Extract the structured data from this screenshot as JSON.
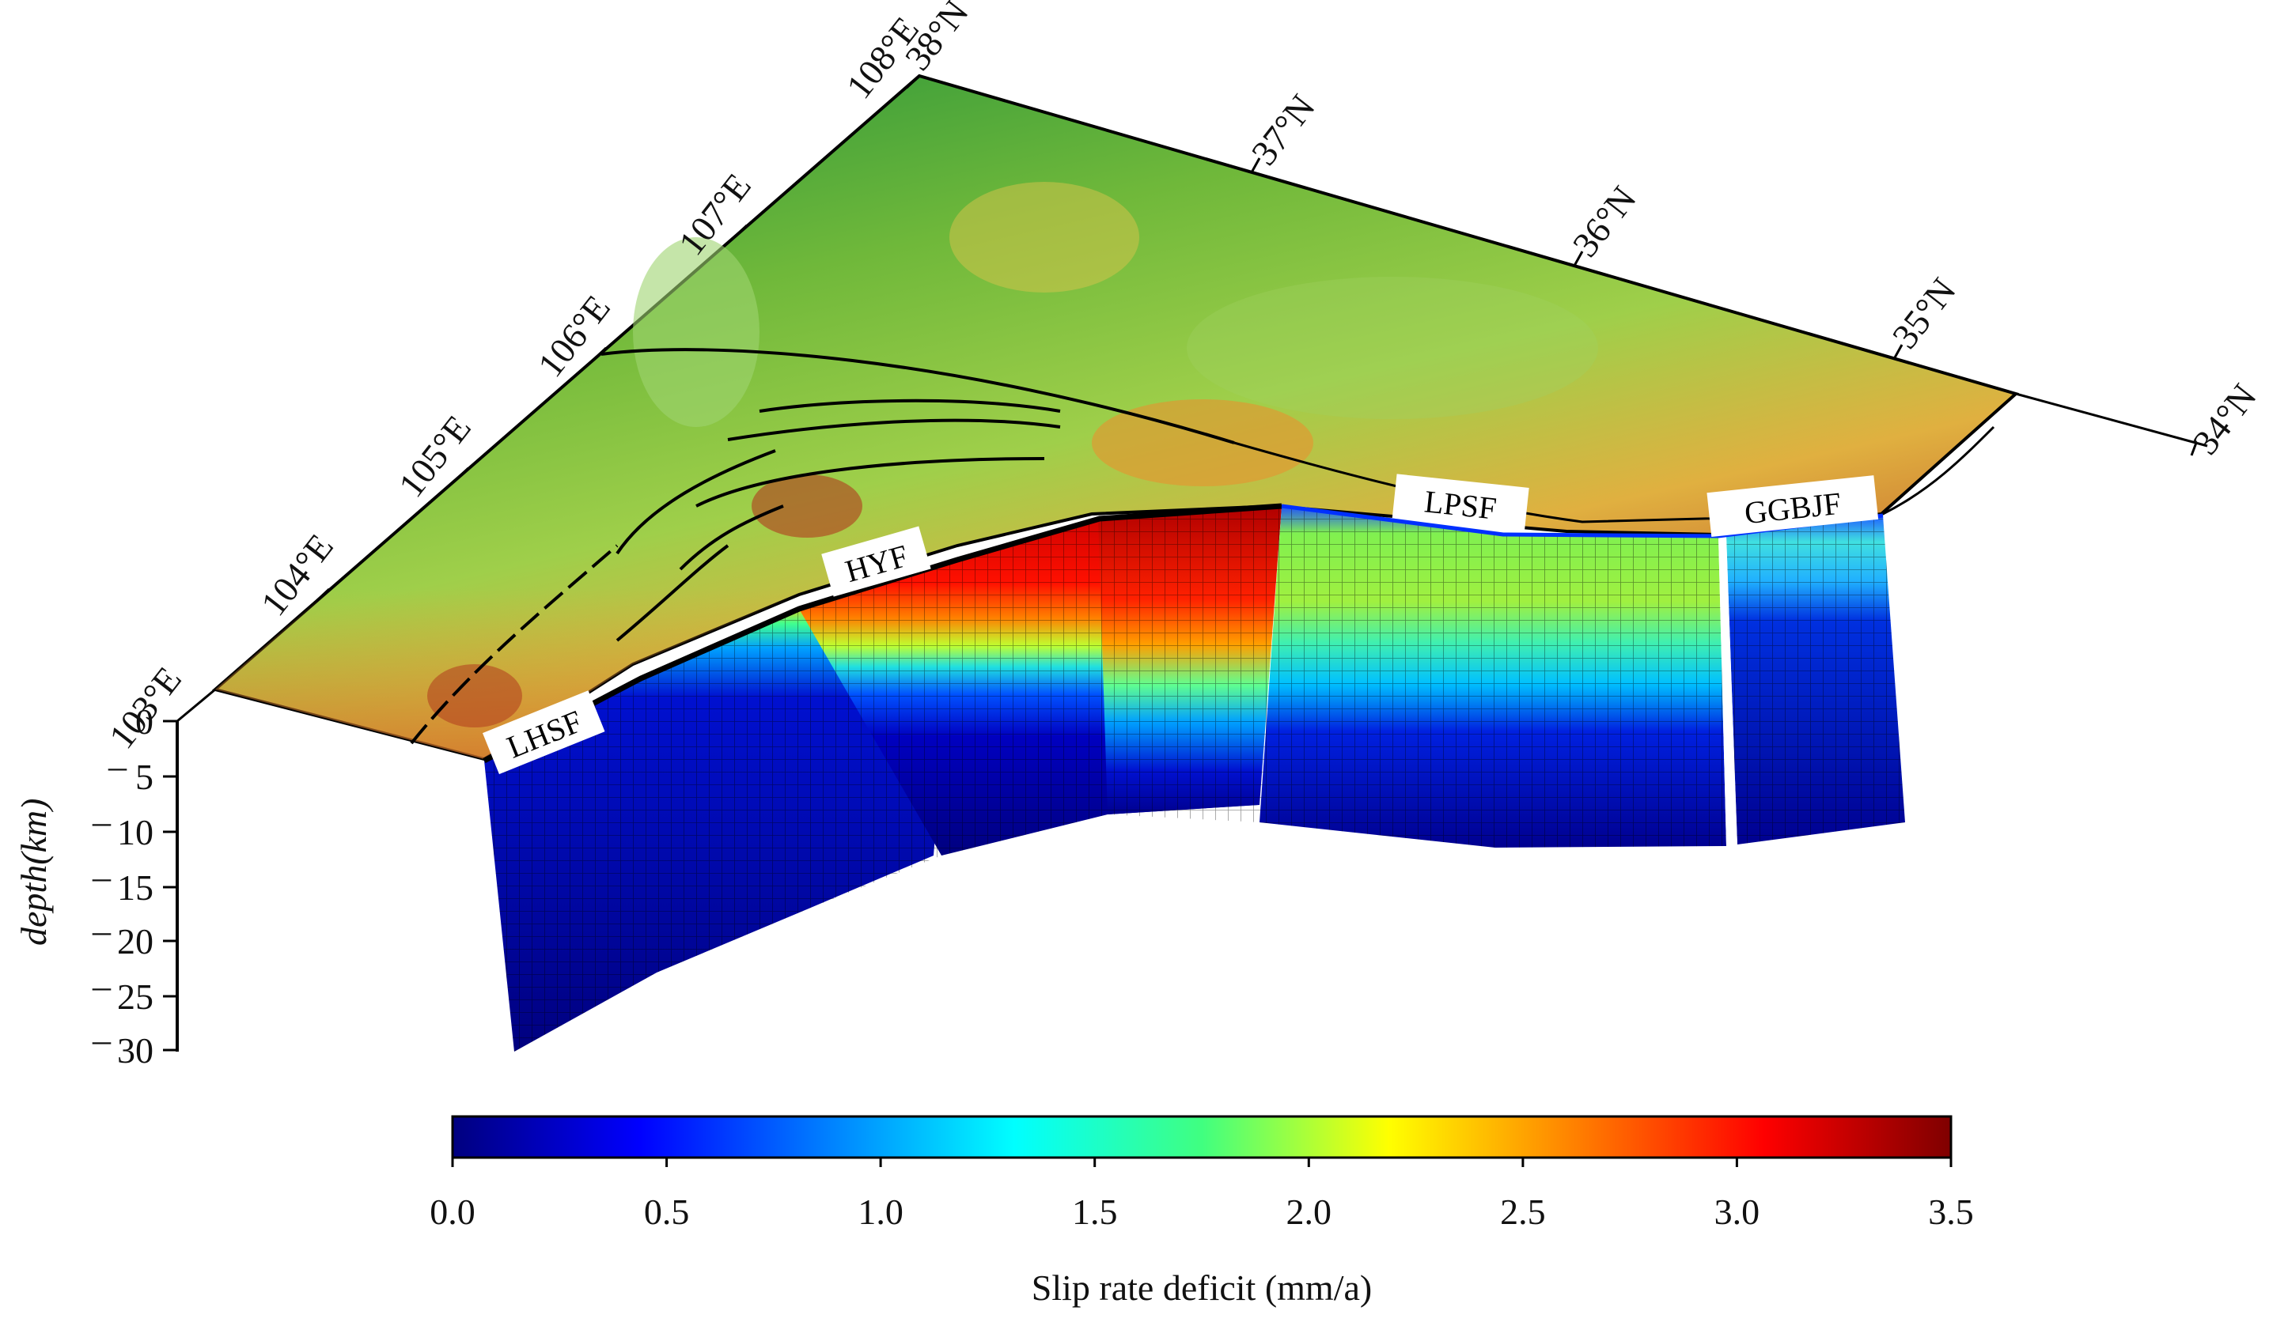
{
  "map": {
    "longitude_labels": [
      "103°E",
      "104°E",
      "105°E",
      "106°E",
      "107°E",
      "108°E"
    ],
    "latitude_labels": [
      "38°N",
      "37°N",
      "36°N",
      "35°N",
      "34°N"
    ]
  },
  "faults": {
    "labels": [
      "LHSF",
      "HYF",
      "LPSF",
      "GGBJF"
    ]
  },
  "depth_axis": {
    "label": "depth(km)",
    "ticks": [
      "0",
      "5",
      "10",
      "15",
      "20",
      "25",
      "30"
    ]
  },
  "colorbar": {
    "title": "Slip rate deficit (mm/a)",
    "ticks": [
      "0.0",
      "0.5",
      "1.0",
      "1.5",
      "2.0",
      "2.5",
      "3.0",
      "3.5"
    ],
    "min": 0.0,
    "max": 3.5,
    "colormap": [
      "#00007f",
      "#0000ff",
      "#00ffff",
      "#ffff00",
      "#ff0000",
      "#7f0000"
    ]
  },
  "colors": {
    "terrain_low": "#1f8f3a",
    "terrain_mid": "#8cc43a",
    "terrain_high": "#e39a2b",
    "terrain_peak": "#b23a1e"
  }
}
